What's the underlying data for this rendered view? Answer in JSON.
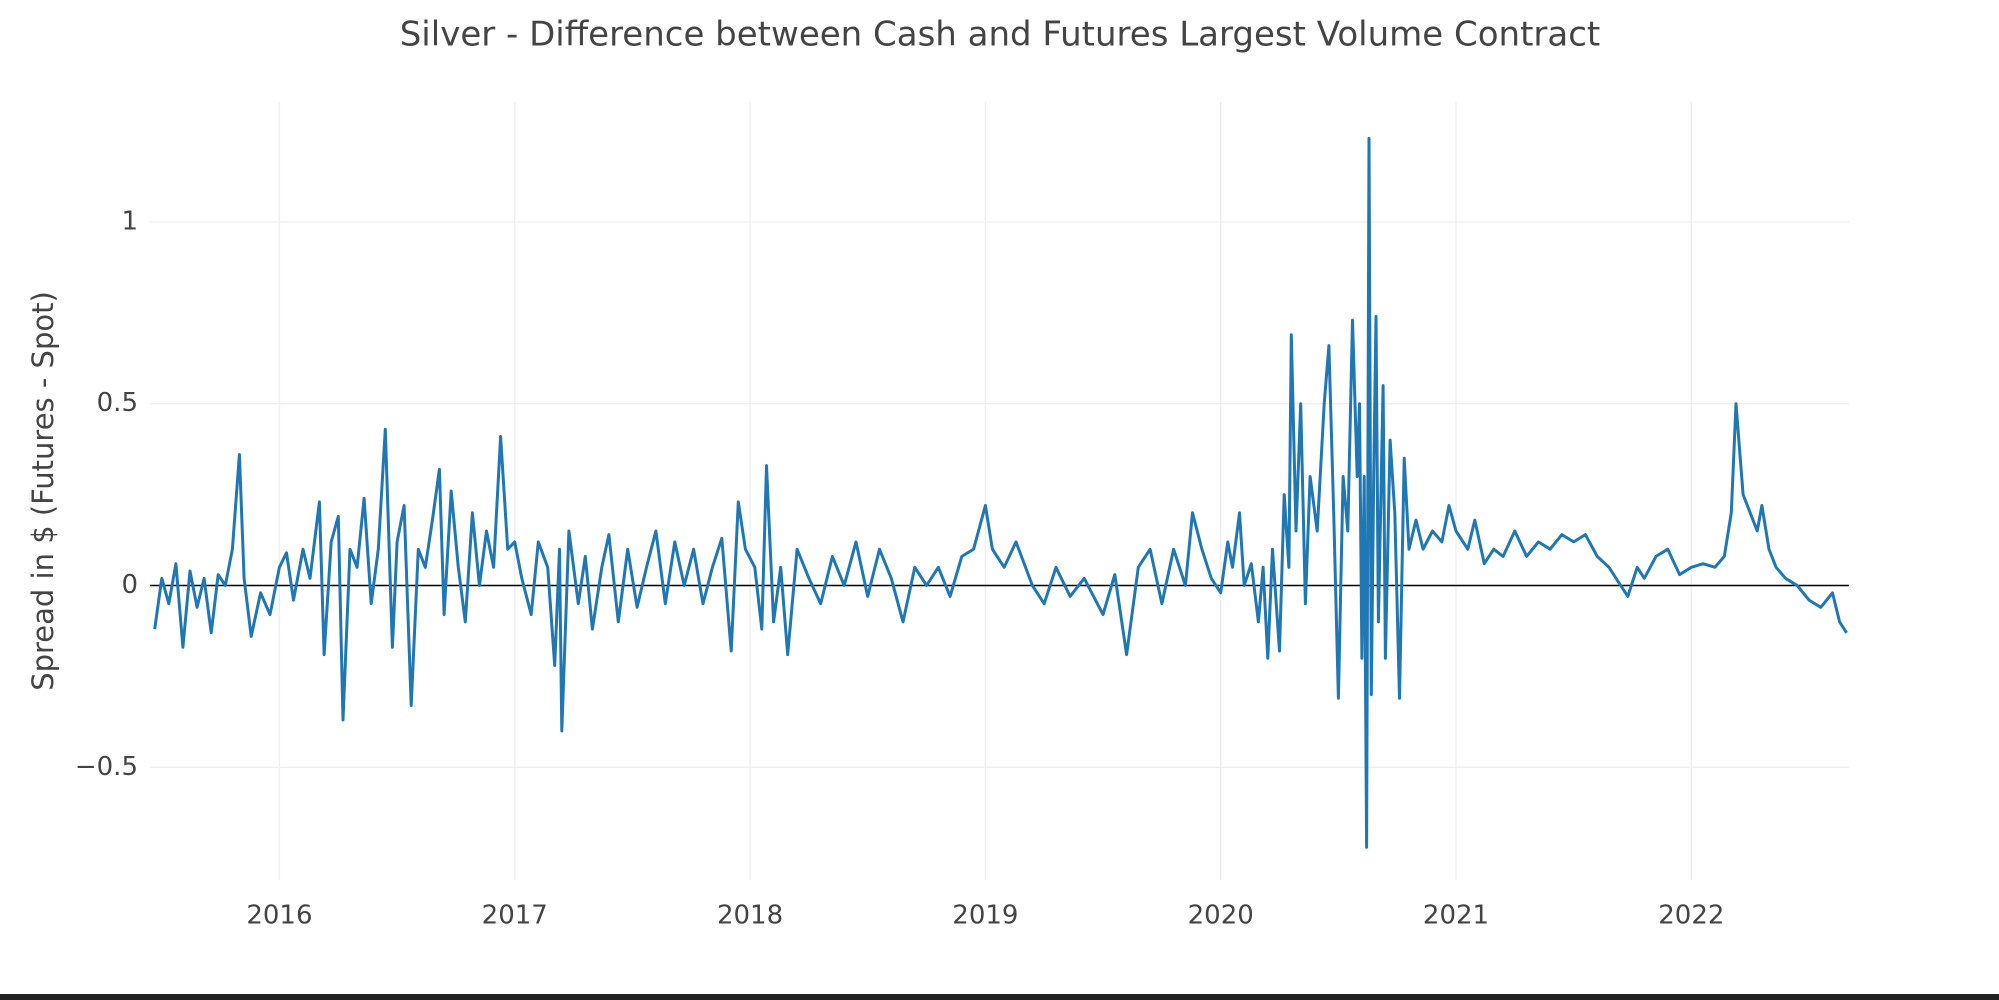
{
  "chart_data": {
    "type": "line",
    "title": "Silver - Difference between Cash and Futures Largest Volume Contract",
    "y_label": "Spread in $ (Futures - Spot)",
    "xlim": [
      2015.45,
      2022.67
    ],
    "xticks": [
      2016,
      2017,
      2018,
      2019,
      2020,
      2021,
      2022
    ],
    "ylim": [
      -0.81,
      1.33
    ],
    "yticks": [
      {
        "value": -0.5,
        "label": "−0.5"
      },
      0,
      0.5,
      1
    ],
    "grid": true,
    "zeroline": true,
    "series": [
      {
        "color": "#1f77b4",
        "x": [
          2015.47,
          2015.5,
          2015.53,
          2015.56,
          2015.59,
          2015.62,
          2015.65,
          2015.68,
          2015.71,
          2015.74,
          2015.77,
          2015.8,
          2015.83,
          2015.85,
          2015.88,
          2015.92,
          2015.96,
          2016.0,
          2016.03,
          2016.06,
          2016.1,
          2016.13,
          2016.17,
          2016.19,
          2016.22,
          2016.25,
          2016.27,
          2016.3,
          2016.33,
          2016.36,
          2016.39,
          2016.42,
          2016.45,
          2016.48,
          2016.5,
          2016.53,
          2016.56,
          2016.59,
          2016.62,
          2016.65,
          2016.68,
          2016.7,
          2016.73,
          2016.76,
          2016.79,
          2016.82,
          2016.85,
          2016.88,
          2016.91,
          2016.94,
          2016.97,
          2017.0,
          2017.03,
          2017.07,
          2017.1,
          2017.14,
          2017.17,
          2017.19,
          2017.2,
          2017.23,
          2017.27,
          2017.3,
          2017.33,
          2017.37,
          2017.4,
          2017.44,
          2017.48,
          2017.52,
          2017.56,
          2017.6,
          2017.64,
          2017.68,
          2017.72,
          2017.76,
          2017.8,
          2017.84,
          2017.88,
          2017.92,
          2017.95,
          2017.98,
          2018.02,
          2018.05,
          2018.07,
          2018.1,
          2018.13,
          2018.16,
          2018.2,
          2018.25,
          2018.3,
          2018.35,
          2018.4,
          2018.45,
          2018.5,
          2018.55,
          2018.6,
          2018.65,
          2018.7,
          2018.75,
          2018.8,
          2018.85,
          2018.9,
          2018.95,
          2019.0,
          2019.03,
          2019.08,
          2019.13,
          2019.2,
          2019.25,
          2019.3,
          2019.36,
          2019.42,
          2019.5,
          2019.55,
          2019.6,
          2019.65,
          2019.7,
          2019.75,
          2019.8,
          2019.85,
          2019.88,
          2019.92,
          2019.96,
          2020.0,
          2020.03,
          2020.05,
          2020.08,
          2020.1,
          2020.13,
          2020.16,
          2020.18,
          2020.2,
          2020.22,
          2020.25,
          2020.27,
          2020.29,
          2020.3,
          2020.32,
          2020.34,
          2020.36,
          2020.38,
          2020.41,
          2020.44,
          2020.46,
          2020.48,
          2020.5,
          2020.52,
          2020.54,
          2020.56,
          2020.58,
          2020.59,
          2020.6,
          2020.61,
          2020.62,
          2020.63,
          2020.64,
          2020.65,
          2020.66,
          2020.67,
          2020.69,
          2020.7,
          2020.72,
          2020.74,
          2020.76,
          2020.78,
          2020.8,
          2020.83,
          2020.86,
          2020.9,
          2020.94,
          2020.97,
          2021.0,
          2021.05,
          2021.08,
          2021.12,
          2021.16,
          2021.2,
          2021.25,
          2021.3,
          2021.35,
          2021.4,
          2021.45,
          2021.5,
          2021.55,
          2021.6,
          2021.65,
          2021.7,
          2021.73,
          2021.77,
          2021.8,
          2021.85,
          2021.9,
          2021.95,
          2022.0,
          2022.05,
          2022.1,
          2022.14,
          2022.17,
          2022.19,
          2022.22,
          2022.25,
          2022.28,
          2022.3,
          2022.33,
          2022.36,
          2022.4,
          2022.45,
          2022.5,
          2022.55,
          2022.6,
          2022.63,
          2022.66
        ],
        "values": [
          -0.12,
          0.02,
          -0.05,
          0.06,
          -0.17,
          0.04,
          -0.06,
          0.02,
          -0.13,
          0.03,
          0.0,
          0.1,
          0.36,
          0.02,
          -0.14,
          -0.02,
          -0.08,
          0.05,
          0.09,
          -0.04,
          0.1,
          0.02,
          0.23,
          -0.19,
          0.12,
          0.19,
          -0.37,
          0.1,
          0.05,
          0.24,
          -0.05,
          0.1,
          0.43,
          -0.17,
          0.12,
          0.22,
          -0.33,
          0.1,
          0.05,
          0.18,
          0.32,
          -0.08,
          0.26,
          0.05,
          -0.1,
          0.2,
          0.0,
          0.15,
          0.05,
          0.41,
          0.1,
          0.12,
          0.02,
          -0.08,
          0.12,
          0.05,
          -0.22,
          0.1,
          -0.4,
          0.15,
          -0.05,
          0.08,
          -0.12,
          0.05,
          0.14,
          -0.1,
          0.1,
          -0.06,
          0.05,
          0.15,
          -0.05,
          0.12,
          0.0,
          0.1,
          -0.05,
          0.05,
          0.13,
          -0.18,
          0.23,
          0.1,
          0.05,
          -0.12,
          0.33,
          -0.1,
          0.05,
          -0.19,
          0.1,
          0.02,
          -0.05,
          0.08,
          0.0,
          0.12,
          -0.03,
          0.1,
          0.02,
          -0.1,
          0.05,
          0.0,
          0.05,
          -0.03,
          0.08,
          0.1,
          0.22,
          0.1,
          0.05,
          0.12,
          0.0,
          -0.05,
          0.05,
          -0.03,
          0.02,
          -0.08,
          0.03,
          -0.19,
          0.05,
          0.1,
          -0.05,
          0.1,
          0.0,
          0.2,
          0.1,
          0.02,
          -0.02,
          0.12,
          0.05,
          0.2,
          0.0,
          0.06,
          -0.1,
          0.05,
          -0.2,
          0.1,
          -0.18,
          0.25,
          0.05,
          0.69,
          0.15,
          0.5,
          -0.05,
          0.3,
          0.15,
          0.5,
          0.66,
          0.2,
          -0.31,
          0.3,
          0.15,
          0.73,
          0.3,
          0.5,
          -0.2,
          0.3,
          -0.72,
          1.23,
          -0.3,
          0.3,
          0.74,
          -0.1,
          0.55,
          -0.2,
          0.4,
          0.2,
          -0.31,
          0.35,
          0.1,
          0.18,
          0.1,
          0.15,
          0.12,
          0.22,
          0.15,
          0.1,
          0.18,
          0.06,
          0.1,
          0.08,
          0.15,
          0.08,
          0.12,
          0.1,
          0.14,
          0.12,
          0.14,
          0.08,
          0.05,
          0.0,
          -0.03,
          0.05,
          0.02,
          0.08,
          0.1,
          0.03,
          0.05,
          0.06,
          0.05,
          0.08,
          0.2,
          0.5,
          0.25,
          0.2,
          0.15,
          0.22,
          0.1,
          0.05,
          0.02,
          0.0,
          -0.04,
          -0.06,
          -0.02,
          -0.1,
          -0.13
        ]
      }
    ]
  }
}
